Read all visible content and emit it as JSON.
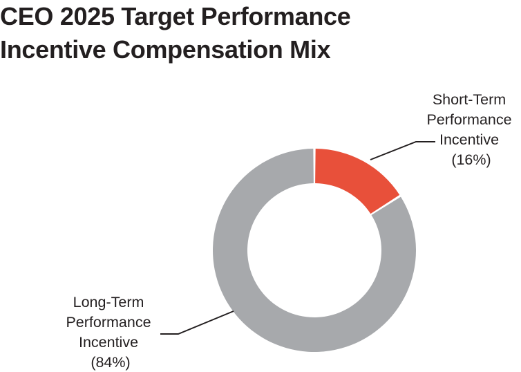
{
  "chart_data": {
    "type": "pie",
    "variant": "donut",
    "title_lines": [
      "CEO 2025 Target Performance",
      "Incentive Compensation Mix"
    ],
    "categories": [
      "Short-Term Performance Incentive",
      "Long-Term Performance Incentive"
    ],
    "values": [
      16,
      84
    ],
    "unit": "%",
    "colors": [
      "#e8503a",
      "#a7a9ac"
    ],
    "labels": [
      {
        "category": "Short-Term Performance Incentive",
        "lines": [
          "Short-Term",
          "Performance",
          "Incentive",
          "(16%)"
        ]
      },
      {
        "category": "Long-Term Performance Incentive",
        "lines": [
          "Long-Term",
          "Performance",
          "Incentive",
          "(84%)"
        ]
      }
    ]
  }
}
